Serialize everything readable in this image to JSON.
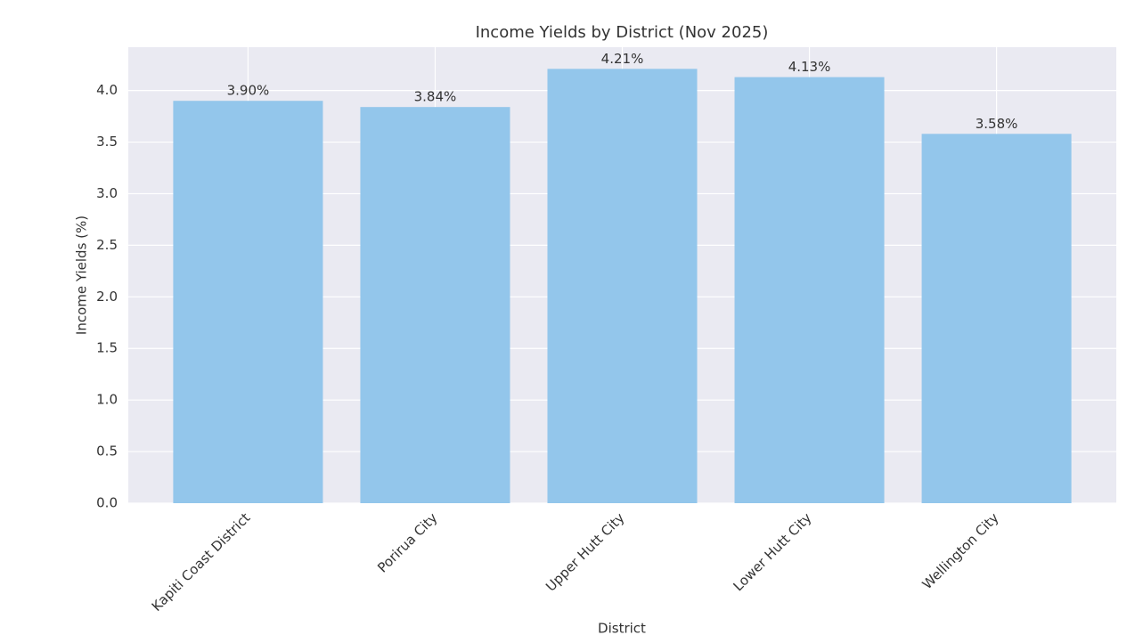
{
  "chart_data": {
    "type": "bar",
    "title": "Income Yields by District (Nov 2025)",
    "x_label": "District",
    "y_label": "Income Yields (%)",
    "categories": [
      "Kapiti Coast District",
      "Porirua City",
      "Upper Hutt City",
      "Lower Hutt City",
      "Wellington City"
    ],
    "values": [
      3.9,
      3.84,
      4.21,
      4.13,
      3.58
    ],
    "value_labels": [
      "3.90%",
      "3.84%",
      "4.21%",
      "4.13%",
      "3.58%"
    ],
    "color": "#93c6eb",
    "ylim": [
      0,
      4.42
    ],
    "yticks": [
      {
        "value": 0,
        "label": "0.0"
      },
      0.5,
      {
        "value": 1,
        "label": "1.0"
      },
      1.5,
      {
        "value": 2,
        "label": "2.0"
      },
      2.5,
      {
        "value": 3,
        "label": "3.0"
      },
      3.5,
      {
        "value": 4,
        "label": "4.0"
      }
    ],
    "grid": true
  }
}
